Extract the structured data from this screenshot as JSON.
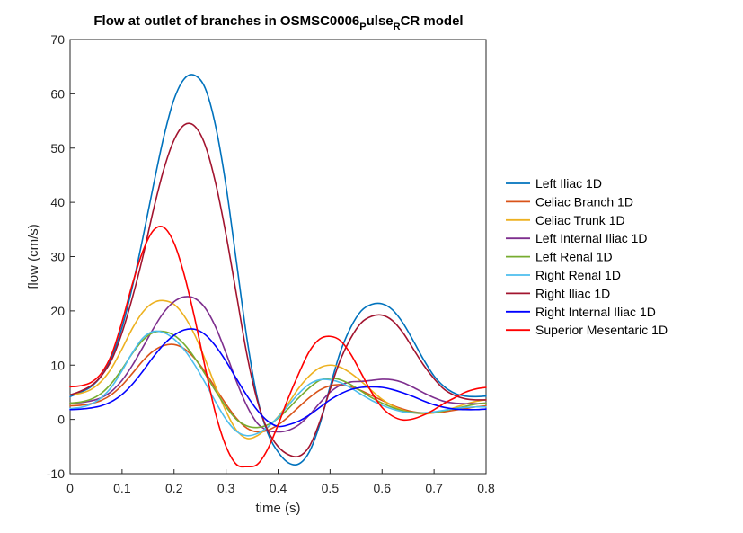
{
  "chart_data": {
    "type": "line",
    "title": "Flow at outlet of branches in OSMSC0006",
    "title_sub1": "P",
    "title_mid": "ulse",
    "title_sub2": "R",
    "title_end": "CR model",
    "xlabel": "time (s)",
    "ylabel": "flow (cm/s)",
    "xlim": [
      0,
      0.8
    ],
    "ylim": [
      -10,
      70
    ],
    "xticks": [
      0,
      0.1,
      0.2,
      0.3,
      0.4,
      0.5,
      0.6,
      0.7,
      0.8
    ],
    "xtick_labels": [
      "0",
      "0.1",
      "0.2",
      "0.3",
      "0.4",
      "0.5",
      "0.6",
      "0.7",
      "0.8"
    ],
    "yticks": [
      -10,
      0,
      10,
      20,
      30,
      40,
      50,
      60,
      70
    ],
    "ytick_labels": [
      "-10",
      "0",
      "10",
      "20",
      "30",
      "40",
      "50",
      "60",
      "70"
    ],
    "grid": false,
    "legend_position": "right",
    "x": [
      0,
      0.02,
      0.04,
      0.06,
      0.08,
      0.1,
      0.12,
      0.14,
      0.16,
      0.18,
      0.2,
      0.22,
      0.24,
      0.26,
      0.28,
      0.3,
      0.32,
      0.34,
      0.36,
      0.38,
      0.4,
      0.42,
      0.44,
      0.46,
      0.48,
      0.5,
      0.52,
      0.54,
      0.56,
      0.58,
      0.6,
      0.62,
      0.64,
      0.66,
      0.68,
      0.7,
      0.72,
      0.74,
      0.76,
      0.78,
      0.8
    ],
    "series": [
      {
        "name": "Left Iliac 1D",
        "color": "#0072BD",
        "values": [
          4.2,
          5.0,
          6.0,
          8.0,
          11.5,
          17.0,
          24.5,
          33.5,
          43.0,
          52.0,
          59.0,
          62.8,
          63.4,
          61.0,
          54.0,
          43.0,
          29.0,
          15.0,
          4.0,
          -2.5,
          -6.0,
          -8.0,
          -8.2,
          -6.0,
          -1.0,
          6.0,
          12.5,
          17.0,
          20.0,
          21.2,
          21.3,
          20.2,
          17.8,
          14.5,
          11.0,
          8.0,
          6.0,
          4.8,
          4.3,
          4.2,
          4.3
        ]
      },
      {
        "name": "Celiac Branch 1D",
        "color": "#D95319",
        "values": [
          2.5,
          2.6,
          2.9,
          3.5,
          4.6,
          6.3,
          8.5,
          10.8,
          12.6,
          13.6,
          13.8,
          13.0,
          11.2,
          8.7,
          5.7,
          2.8,
          0.2,
          -1.6,
          -2.3,
          -2.0,
          -1.0,
          0.5,
          2.3,
          4.0,
          5.4,
          6.2,
          6.4,
          6.0,
          5.3,
          4.4,
          3.5,
          2.6,
          1.9,
          1.4,
          1.2,
          1.2,
          1.4,
          1.7,
          2.0,
          2.3,
          2.5
        ]
      },
      {
        "name": "Celiac Trunk 1D",
        "color": "#EDB120",
        "values": [
          4.5,
          4.8,
          5.5,
          7.0,
          9.5,
          13.0,
          16.8,
          19.8,
          21.5,
          21.9,
          21.2,
          19.0,
          15.5,
          11.0,
          6.0,
          1.5,
          -2.0,
          -3.5,
          -3.0,
          -1.5,
          0.5,
          3.0,
          5.8,
          8.0,
          9.5,
          10.0,
          9.6,
          8.5,
          7.0,
          5.3,
          3.7,
          2.5,
          1.7,
          1.2,
          1.0,
          1.2,
          1.6,
          2.2,
          2.8,
          3.3,
          3.6
        ]
      },
      {
        "name": "Left Internal Iliac 1D",
        "color": "#7E2F8E",
        "values": [
          3.0,
          3.1,
          3.4,
          4.0,
          5.2,
          7.2,
          10.0,
          13.3,
          16.7,
          19.7,
          21.7,
          22.6,
          22.3,
          20.5,
          17.0,
          12.2,
          7.0,
          2.5,
          -0.7,
          -2.0,
          -2.3,
          -2.0,
          -1.0,
          0.8,
          3.0,
          5.0,
          6.3,
          6.9,
          7.0,
          7.2,
          7.4,
          7.3,
          6.8,
          5.9,
          4.9,
          4.0,
          3.3,
          3.0,
          2.9,
          2.9,
          3.0
        ]
      },
      {
        "name": "Left Renal 1D",
        "color": "#77AC30",
        "values": [
          3.0,
          3.2,
          3.7,
          4.8,
          6.7,
          9.3,
          12.2,
          14.6,
          16.0,
          16.2,
          15.5,
          13.8,
          11.3,
          8.3,
          5.2,
          2.3,
          0.0,
          -1.2,
          -1.5,
          -1.0,
          0.2,
          2.0,
          4.0,
          5.8,
          7.2,
          7.6,
          7.3,
          6.4,
          5.2,
          4.0,
          3.0,
          2.2,
          1.6,
          1.3,
          1.2,
          1.3,
          1.6,
          2.0,
          2.4,
          2.8,
          3.0
        ]
      },
      {
        "name": "Right Renal 1D",
        "color": "#4DBEEE",
        "values": [
          2.0,
          2.2,
          2.8,
          4.0,
          6.0,
          9.0,
          12.3,
          15.0,
          16.2,
          16.0,
          14.8,
          12.8,
          10.0,
          6.7,
          3.2,
          0.0,
          -2.2,
          -3.0,
          -2.6,
          -1.4,
          0.4,
          2.6,
          4.8,
          6.5,
          7.3,
          7.3,
          6.8,
          5.8,
          4.6,
          3.5,
          2.6,
          1.9,
          1.4,
          1.2,
          1.2,
          1.4,
          1.7,
          2.0,
          2.2,
          2.3,
          2.3
        ]
      },
      {
        "name": "Right Iliac 1D",
        "color": "#A2142F",
        "values": [
          4.5,
          5.2,
          6.2,
          8.0,
          11.0,
          16.0,
          22.5,
          30.0,
          38.5,
          46.0,
          51.5,
          54.3,
          54.0,
          50.5,
          43.5,
          34.0,
          23.0,
          12.0,
          3.5,
          -2.0,
          -5.0,
          -6.5,
          -6.8,
          -5.0,
          -0.5,
          5.5,
          11.0,
          15.0,
          17.8,
          19.0,
          19.2,
          18.2,
          16.0,
          13.0,
          10.0,
          7.5,
          5.5,
          4.4,
          3.8,
          3.6,
          3.6
        ]
      },
      {
        "name": "Right Internal Iliac 1D",
        "color": "#0000FF",
        "values": [
          1.8,
          1.9,
          2.1,
          2.5,
          3.3,
          4.6,
          6.5,
          8.9,
          11.5,
          13.8,
          15.5,
          16.5,
          16.6,
          15.6,
          13.5,
          10.7,
          7.5,
          4.4,
          1.7,
          -0.3,
          -1.3,
          -1.0,
          -0.3,
          0.8,
          2.2,
          3.6,
          4.7,
          5.5,
          5.9,
          6.0,
          5.9,
          5.5,
          4.9,
          4.2,
          3.4,
          2.7,
          2.2,
          1.9,
          1.8,
          1.8,
          1.9
        ]
      },
      {
        "name": "Superior Mesentaric 1D",
        "color": "#FF0000",
        "values": [
          6.0,
          6.2,
          6.8,
          8.5,
          12.0,
          18.0,
          25.0,
          31.0,
          34.8,
          35.4,
          32.5,
          26.5,
          18.5,
          9.5,
          1.0,
          -5.0,
          -8.3,
          -8.7,
          -8.3,
          -5.5,
          -1.0,
          4.0,
          8.5,
          12.5,
          14.8,
          15.3,
          14.5,
          12.0,
          8.5,
          5.0,
          2.2,
          0.6,
          -0.1,
          0.1,
          0.8,
          1.8,
          3.0,
          4.0,
          5.0,
          5.6,
          5.9
        ]
      }
    ]
  }
}
